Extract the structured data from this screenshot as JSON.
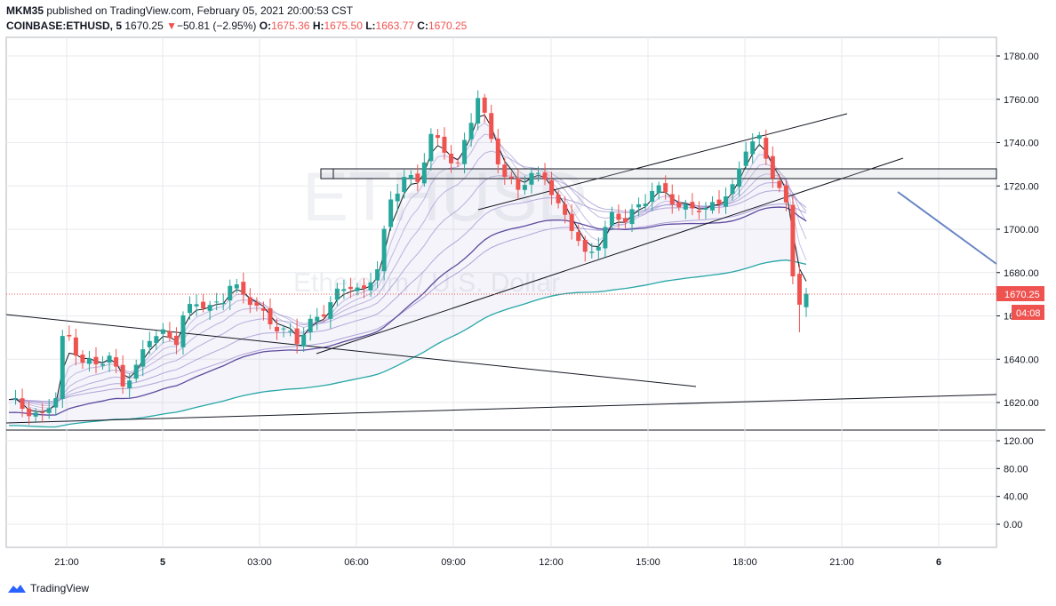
{
  "header": {
    "user": "MKM35",
    "published_text": "published on TradingView.com, February 05, 2021 20:00:53 CST",
    "symbol": "COINBASE:ETHUSD, 5",
    "price": "1670.25",
    "change_arrow": "▼",
    "change": "−50.81 (−2.95%)",
    "o_label": "O:",
    "o_value": "1675.36",
    "h_label": "H:",
    "h_value": "1675.50",
    "l_label": "L:",
    "l_value": "1663.77",
    "c_label": "C:",
    "c_value": "1670.25"
  },
  "watermark": {
    "symbol": "ETHUSD",
    "subtitle": "Ethereum / U.S. Dollar"
  },
  "price_axis": {
    "ticks": [
      "1780.00",
      "1760.00",
      "1740.00",
      "1720.00",
      "1700.00",
      "1680.00",
      "1660.00",
      "1640.00",
      "1620.00"
    ],
    "current_price": "1670.25",
    "countdown": "04:08"
  },
  "indicator_axis": {
    "ticks": [
      "120.00",
      "80.00",
      "40.00",
      "0.00"
    ]
  },
  "time_axis": {
    "ticks": [
      "21:00",
      "5",
      "03:00",
      "06:00",
      "09:00",
      "12:00",
      "15:00",
      "18:00",
      "21:00",
      "6"
    ]
  },
  "footer": {
    "brand": "TradingView"
  },
  "colors": {
    "up": "#26a69a",
    "down": "#ef5350",
    "ribbon": "#9c8fcf",
    "ema_teal": "#26a6a6",
    "ema_purple": "#5e4a9e",
    "price_line": "#ef5350",
    "grid": "#e8eaee"
  },
  "chart_data": {
    "type": "candlestick",
    "y_range": [
      1610,
      1790
    ],
    "x_ticks": [
      "21:00",
      "5",
      "03:00",
      "06:00",
      "09:00",
      "12:00",
      "15:00",
      "18:00",
      "21:00",
      "6"
    ],
    "close_path": [
      [
        0,
        1620
      ],
      [
        3,
        1617
      ],
      [
        5,
        1614
      ],
      [
        7,
        1622
      ],
      [
        8,
        1648
      ],
      [
        9,
        1650
      ],
      [
        11,
        1640
      ],
      [
        13,
        1637
      ],
      [
        15,
        1640
      ],
      [
        17,
        1630
      ],
      [
        19,
        1636
      ],
      [
        21,
        1649
      ],
      [
        23,
        1652
      ],
      [
        25,
        1650
      ],
      [
        26,
        1660
      ],
      [
        28,
        1665
      ],
      [
        30,
        1664
      ],
      [
        32,
        1669
      ],
      [
        33,
        1675
      ],
      [
        35,
        1668
      ],
      [
        37,
        1665
      ],
      [
        39,
        1658
      ],
      [
        41,
        1652
      ],
      [
        43,
        1648
      ],
      [
        45,
        1658
      ],
      [
        47,
        1662
      ],
      [
        49,
        1669
      ],
      [
        51,
        1675
      ],
      [
        53,
        1672
      ],
      [
        55,
        1682
      ],
      [
        57,
        1712
      ],
      [
        59,
        1726
      ],
      [
        61,
        1722
      ],
      [
        63,
        1742
      ],
      [
        65,
        1737
      ],
      [
        67,
        1730
      ],
      [
        69,
        1750
      ],
      [
        70,
        1760
      ],
      [
        72,
        1742
      ],
      [
        74,
        1725
      ],
      [
        76,
        1718
      ],
      [
        78,
        1724
      ],
      [
        80,
        1726
      ],
      [
        82,
        1710
      ],
      [
        84,
        1700
      ],
      [
        86,
        1688
      ],
      [
        88,
        1695
      ],
      [
        90,
        1705
      ],
      [
        92,
        1704
      ],
      [
        94,
        1712
      ],
      [
        96,
        1718
      ],
      [
        98,
        1716
      ],
      [
        100,
        1710
      ],
      [
        102,
        1712
      ],
      [
        104,
        1707
      ],
      [
        106,
        1713
      ],
      [
        108,
        1720
      ],
      [
        110,
        1738
      ],
      [
        112,
        1740
      ],
      [
        114,
        1726
      ],
      [
        116,
        1712
      ],
      [
        117,
        1680
      ],
      [
        118,
        1665
      ],
      [
        119,
        1670.25
      ]
    ]
  }
}
